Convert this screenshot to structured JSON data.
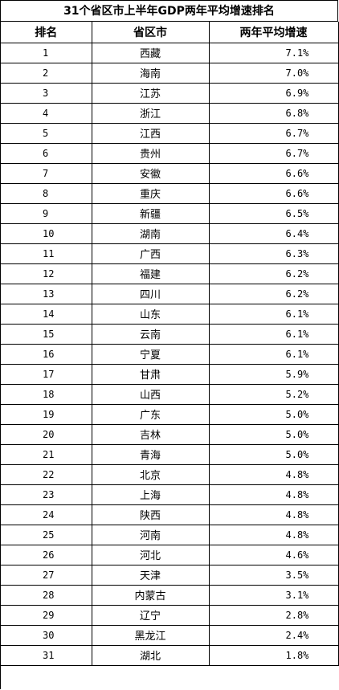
{
  "title": "31个省区市上半年GDP两年平均增速排名",
  "columns": {
    "rank": "排名",
    "province": "省区市",
    "rate": "两年平均增速"
  },
  "rows": [
    {
      "rank": "1",
      "province": "西藏",
      "rate": "7.1%"
    },
    {
      "rank": "2",
      "province": "海南",
      "rate": "7.0%"
    },
    {
      "rank": "3",
      "province": "江苏",
      "rate": "6.9%"
    },
    {
      "rank": "4",
      "province": "浙江",
      "rate": "6.8%"
    },
    {
      "rank": "5",
      "province": "江西",
      "rate": "6.7%"
    },
    {
      "rank": "6",
      "province": "贵州",
      "rate": "6.7%"
    },
    {
      "rank": "7",
      "province": "安徽",
      "rate": "6.6%"
    },
    {
      "rank": "8",
      "province": "重庆",
      "rate": "6.6%"
    },
    {
      "rank": "9",
      "province": "新疆",
      "rate": "6.5%"
    },
    {
      "rank": "10",
      "province": "湖南",
      "rate": "6.4%"
    },
    {
      "rank": "11",
      "province": "广西",
      "rate": "6.3%"
    },
    {
      "rank": "12",
      "province": "福建",
      "rate": "6.2%"
    },
    {
      "rank": "13",
      "province": "四川",
      "rate": "6.2%"
    },
    {
      "rank": "14",
      "province": "山东",
      "rate": "6.1%"
    },
    {
      "rank": "15",
      "province": "云南",
      "rate": "6.1%"
    },
    {
      "rank": "16",
      "province": "宁夏",
      "rate": "6.1%"
    },
    {
      "rank": "17",
      "province": "甘肃",
      "rate": "5.9%"
    },
    {
      "rank": "18",
      "province": "山西",
      "rate": "5.2%"
    },
    {
      "rank": "19",
      "province": "广东",
      "rate": "5.0%"
    },
    {
      "rank": "20",
      "province": "吉林",
      "rate": "5.0%"
    },
    {
      "rank": "21",
      "province": "青海",
      "rate": "5.0%"
    },
    {
      "rank": "22",
      "province": "北京",
      "rate": "4.8%"
    },
    {
      "rank": "23",
      "province": "上海",
      "rate": "4.8%"
    },
    {
      "rank": "24",
      "province": "陕西",
      "rate": "4.8%"
    },
    {
      "rank": "25",
      "province": "河南",
      "rate": "4.8%"
    },
    {
      "rank": "26",
      "province": "河北",
      "rate": "4.6%"
    },
    {
      "rank": "27",
      "province": "天津",
      "rate": "3.5%"
    },
    {
      "rank": "28",
      "province": "内蒙古",
      "rate": "3.1%"
    },
    {
      "rank": "29",
      "province": "辽宁",
      "rate": "2.8%"
    },
    {
      "rank": "30",
      "province": "黑龙江",
      "rate": "2.4%"
    },
    {
      "rank": "31",
      "province": "湖北",
      "rate": "1.8%"
    }
  ]
}
